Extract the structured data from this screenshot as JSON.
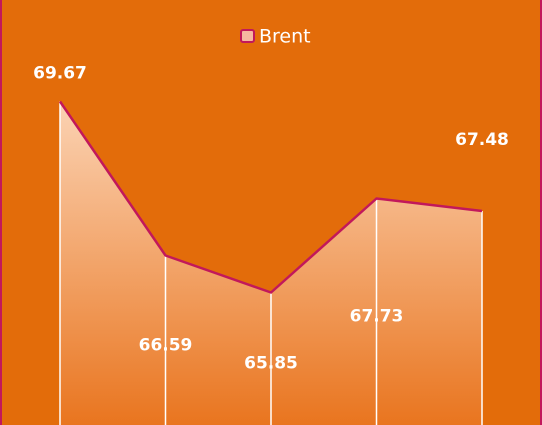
{
  "chart_data": {
    "type": "area",
    "series": [
      {
        "name": "Brent",
        "color": "#c2185b",
        "values": [
          69.67,
          66.59,
          65.85,
          67.73,
          67.48
        ]
      }
    ],
    "ylim": [
      63.2,
      71.7
    ]
  }
}
